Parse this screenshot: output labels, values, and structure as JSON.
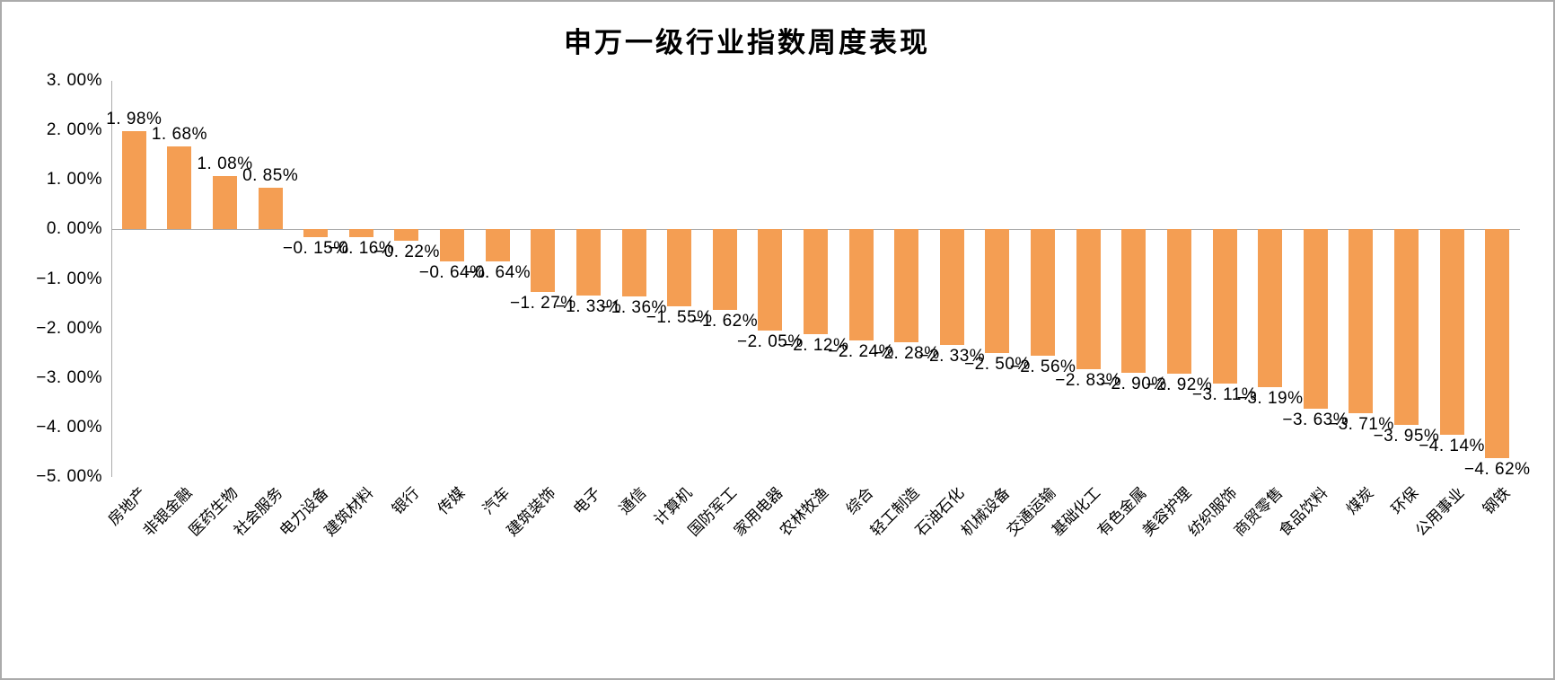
{
  "title": "申万一级行业指数周度表现",
  "colors": {
    "bar": "#F49E53",
    "axis_line": "#ABABAB",
    "zero_line": "#ABABAB",
    "text": "#000000",
    "frame_border": "#ABABAB"
  },
  "y_axis": {
    "tick_labels": [
      "3. 00%",
      "2. 00%",
      "1. 00%",
      "0. 00%",
      "−1. 00%",
      "−2. 00%",
      "−3. 00%",
      "−4. 00%",
      "−5. 00%"
    ]
  },
  "chart_data": {
    "type": "bar",
    "title": "申万一级行业指数周度表现",
    "categories": [
      "房地产",
      "非银金融",
      "医药生物",
      "社会服务",
      "电力设备",
      "建筑材料",
      "银行",
      "传媒",
      "汽车",
      "建筑装饰",
      "电子",
      "通信",
      "计算机",
      "国防军工",
      "家用电器",
      "农林牧渔",
      "综合",
      "轻工制造",
      "石油石化",
      "机械设备",
      "交通运输",
      "基础化工",
      "有色金属",
      "美容护理",
      "纺织服饰",
      "商贸零售",
      "食品饮料",
      "煤炭",
      "环保",
      "公用事业",
      "钢铁"
    ],
    "values": [
      1.98,
      1.68,
      1.08,
      0.85,
      -0.15,
      -0.16,
      -0.22,
      -0.64,
      -0.64,
      -1.27,
      -1.33,
      -1.36,
      -1.55,
      -1.62,
      -2.05,
      -2.12,
      -2.24,
      -2.28,
      -2.33,
      -2.5,
      -2.56,
      -2.83,
      -2.9,
      -2.92,
      -3.11,
      -3.19,
      -3.63,
      -3.71,
      -3.95,
      -4.14,
      -4.62
    ],
    "data_labels": [
      "1. 98%",
      "1. 68%",
      "1. 08%",
      "0. 85%",
      "−0. 15%",
      "−0. 16%",
      "−0. 22%",
      "−0. 64%",
      "−0. 64%",
      "−1. 27%",
      "−1. 33%",
      "−1. 36%",
      "−1. 55%",
      "−1. 62%",
      "−2. 05%",
      "−2. 12%",
      "−2. 24%",
      "−2. 28%",
      "−2. 33%",
      "−2. 50%",
      "−2. 56%",
      "−2. 83%",
      "−2. 90%",
      "−2. 92%",
      "−3. 11%",
      "−3. 19%",
      "−3. 63%",
      "−3. 71%",
      "−3. 95%",
      "−4. 14%",
      "−4. 62%"
    ],
    "ylabel": "",
    "xlabel": "",
    "ylim": [
      -5,
      3
    ],
    "y_tick_step": 1,
    "unit": "%",
    "grid": false,
    "legend": false
  }
}
